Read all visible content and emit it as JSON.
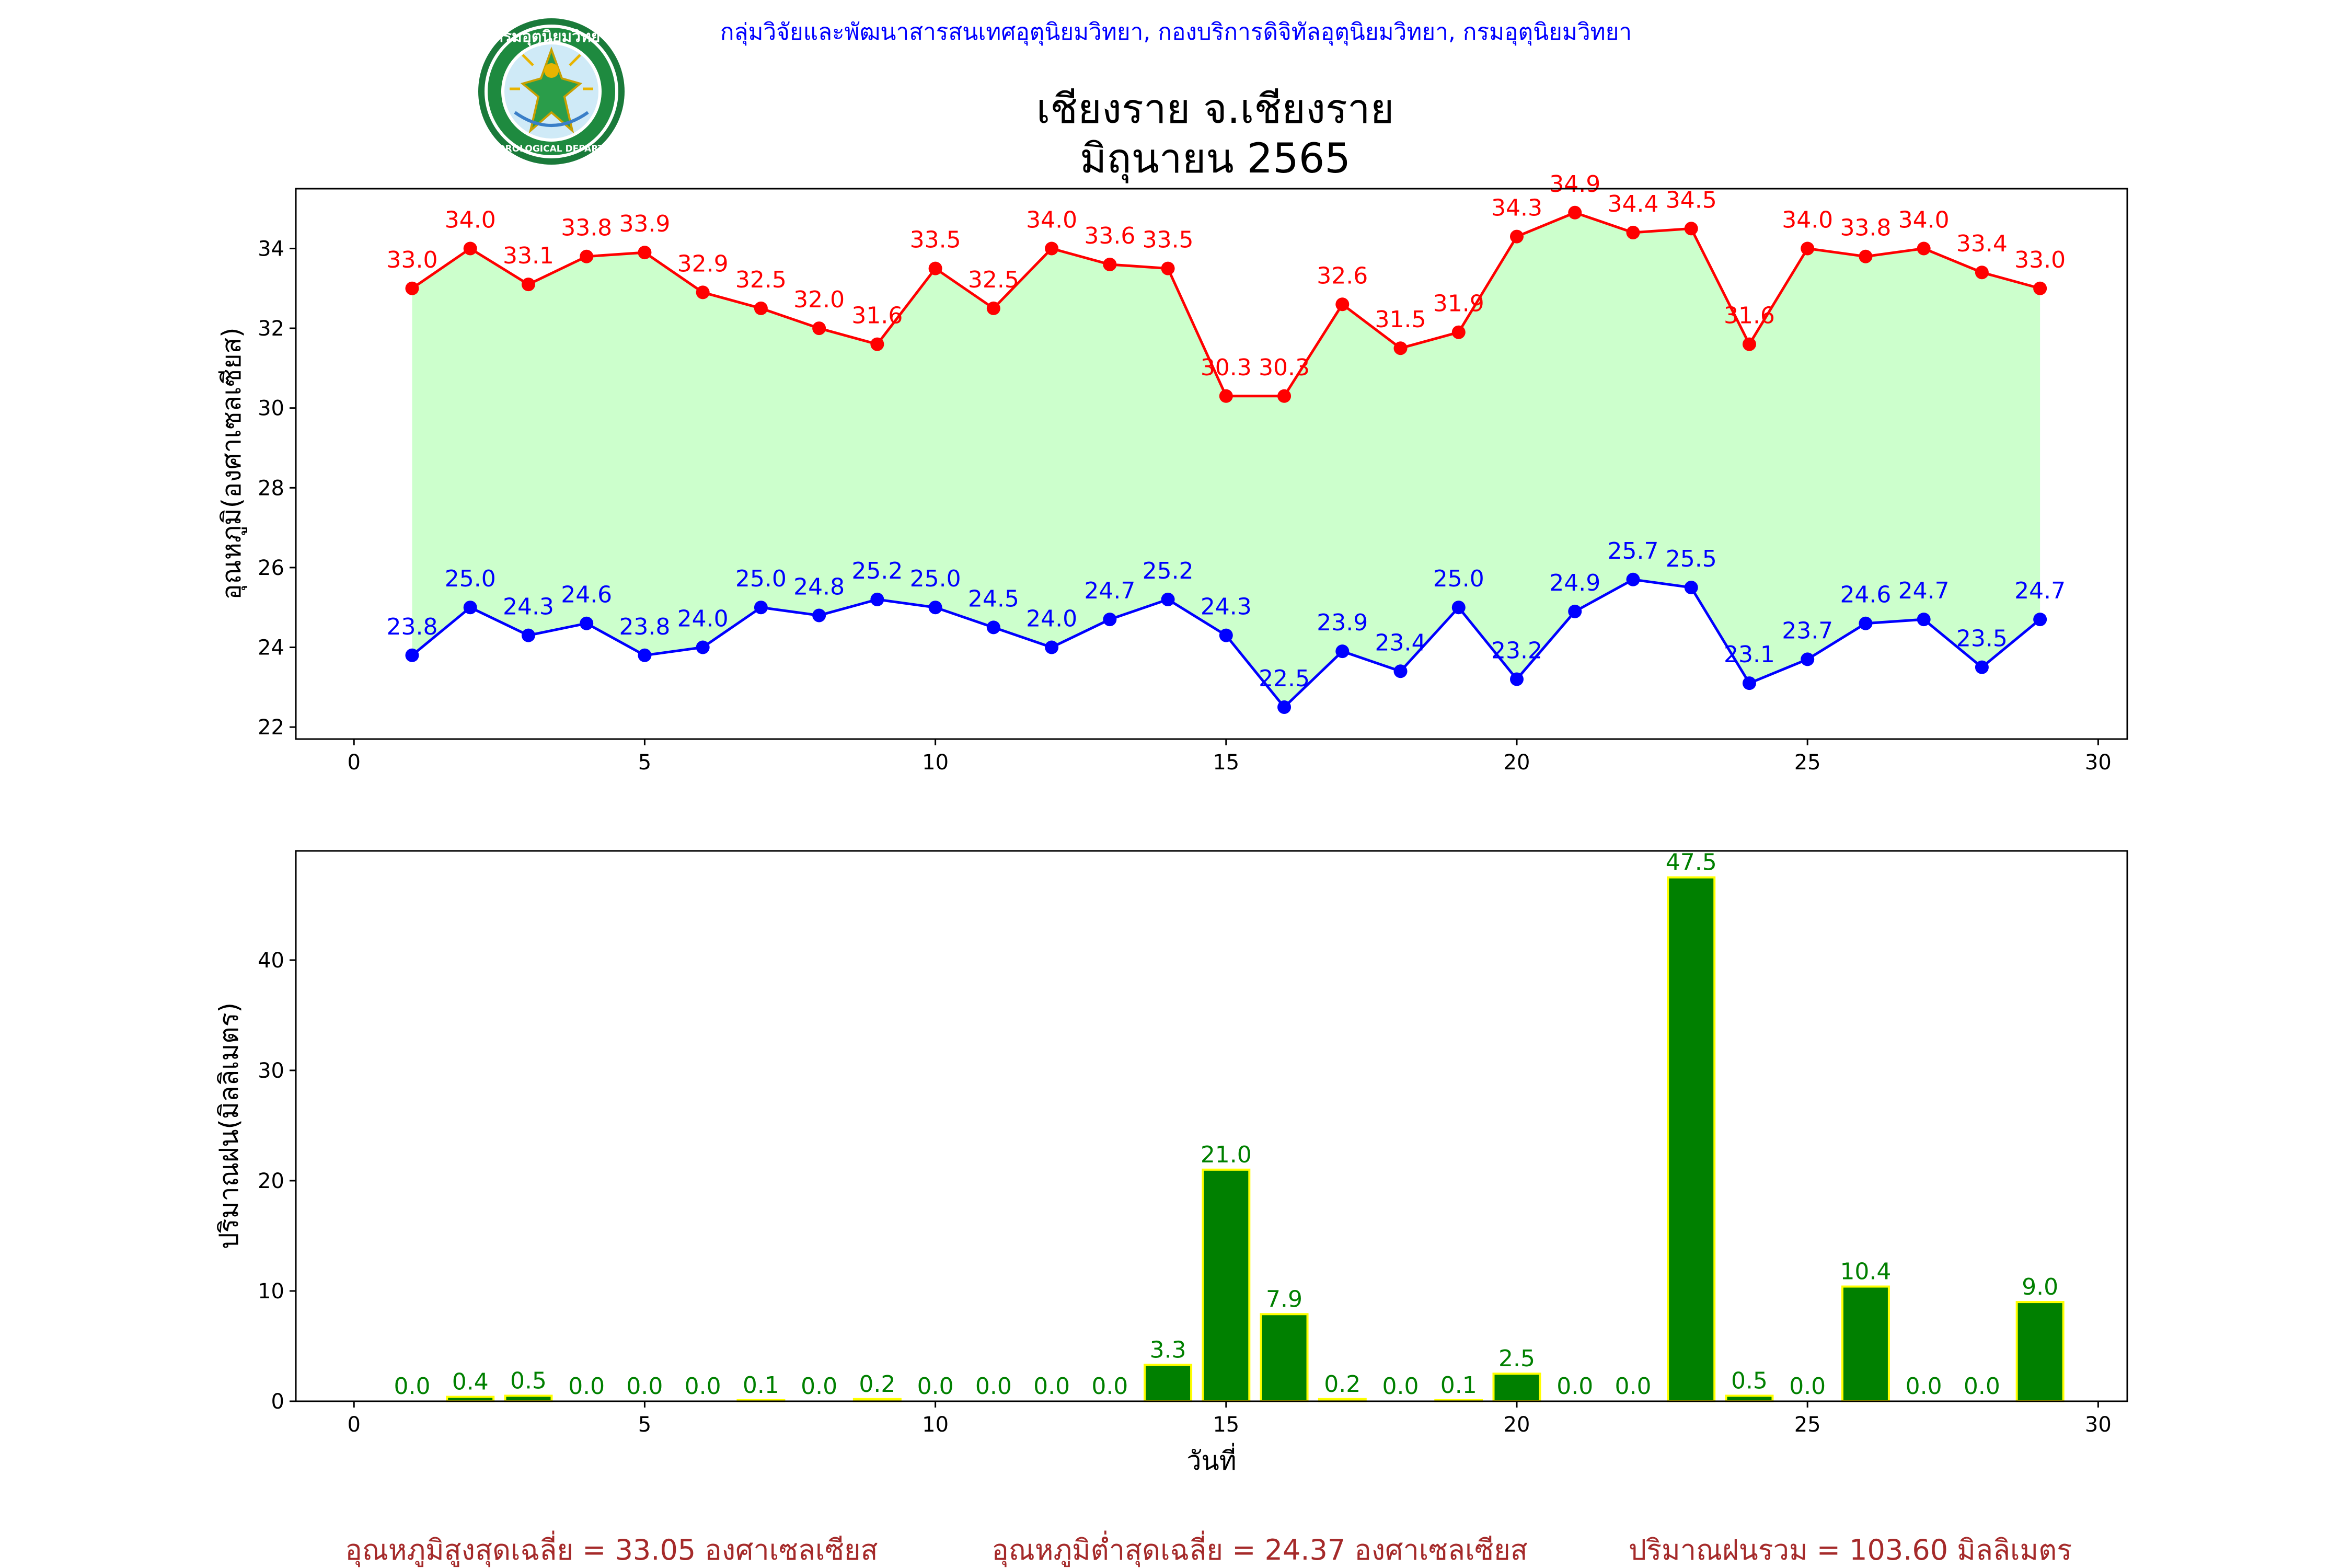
{
  "header": {
    "agency": "กลุ่มวิจัยและพัฒนาสารสนเทศอุตุนิยมวิทยา, กองบริการดิจิทัลอุตุนิยมวิทยา, กรมอุตุนิยมวิทยา",
    "logo_text": "METEOROLOGICAL DEPARTMENT",
    "logo_thai": "กรมอุตุนิยมวิทยา",
    "title_line1": "เชียงราย จ.เชียงราย",
    "title_line2": "มิถุนายน 2565"
  },
  "colors": {
    "agency": "#0000ff",
    "max_temp": "#ff0000",
    "min_temp": "#0000ff",
    "fill": "#ccffcc",
    "rain_bar": "#008000",
    "rain_edge": "#ffff00",
    "rain_label": "#008000",
    "summary": "#a52a2a"
  },
  "chart_data": [
    {
      "type": "line",
      "ylabel": "อุณหภูมิ(องศาเซลเซียส)",
      "xlabel": "",
      "xlim": [
        -1,
        30.5
      ],
      "ylim": [
        21.7,
        35.5
      ],
      "xticks": [
        0,
        5,
        10,
        15,
        20,
        25,
        30
      ],
      "yticks": [
        22,
        24,
        26,
        28,
        30,
        32,
        34
      ],
      "fill_between": true,
      "x": [
        1,
        2,
        3,
        4,
        5,
        6,
        7,
        8,
        9,
        10,
        11,
        12,
        13,
        14,
        15,
        16,
        17,
        18,
        19,
        20,
        21,
        22,
        23,
        24,
        25,
        26,
        27,
        28,
        29
      ],
      "series": [
        {
          "key": "max",
          "values": [
            33.0,
            34.0,
            33.1,
            33.8,
            33.9,
            32.9,
            32.5,
            32.0,
            31.6,
            33.5,
            32.5,
            34.0,
            33.6,
            33.5,
            30.3,
            30.3,
            32.6,
            31.5,
            31.9,
            34.3,
            34.9,
            34.4,
            34.5,
            31.6,
            34.0,
            33.8,
            34.0,
            33.4,
            33.0
          ]
        },
        {
          "key": "min",
          "values": [
            23.8,
            25.0,
            24.3,
            24.6,
            23.8,
            24.0,
            25.0,
            24.8,
            25.2,
            25.0,
            24.5,
            24.0,
            24.7,
            25.2,
            24.3,
            22.5,
            23.9,
            23.4,
            25.0,
            23.2,
            24.9,
            25.7,
            25.5,
            23.1,
            23.7,
            24.6,
            24.7,
            23.5,
            24.7
          ]
        }
      ]
    },
    {
      "type": "bar",
      "ylabel": "ปริมาณฝน(มิลลิเมตร)",
      "xlabel": "วันที่",
      "xlim": [
        -1,
        30.5
      ],
      "ylim": [
        0,
        49.9
      ],
      "xticks": [
        0,
        5,
        10,
        15,
        20,
        25,
        30
      ],
      "yticks": [
        0,
        10,
        20,
        30,
        40
      ],
      "x": [
        1,
        2,
        3,
        4,
        5,
        6,
        7,
        8,
        9,
        10,
        11,
        12,
        13,
        14,
        15,
        16,
        17,
        18,
        19,
        20,
        21,
        22,
        23,
        24,
        25,
        26,
        27,
        28,
        29
      ],
      "values": [
        0.0,
        0.4,
        0.5,
        0.0,
        0.0,
        0.0,
        0.1,
        0.0,
        0.2,
        0.0,
        0.0,
        0.0,
        0.0,
        3.3,
        21.0,
        7.9,
        0.2,
        0.0,
        0.1,
        2.5,
        0.0,
        0.0,
        47.5,
        0.5,
        0.0,
        10.4,
        0.0,
        0.0,
        9.0
      ]
    }
  ],
  "summary": {
    "max_avg": "อุณหภูมิสูงสุดเฉลี่ย = 33.05 องศาเซลเซียส",
    "min_avg": "อุณหภูมิต่ำสุดเฉลี่ย = 24.37 องศาเซลเซียส",
    "rain_total": "ปริมาณฝนรวม = 103.60 มิลลิเมตร"
  }
}
